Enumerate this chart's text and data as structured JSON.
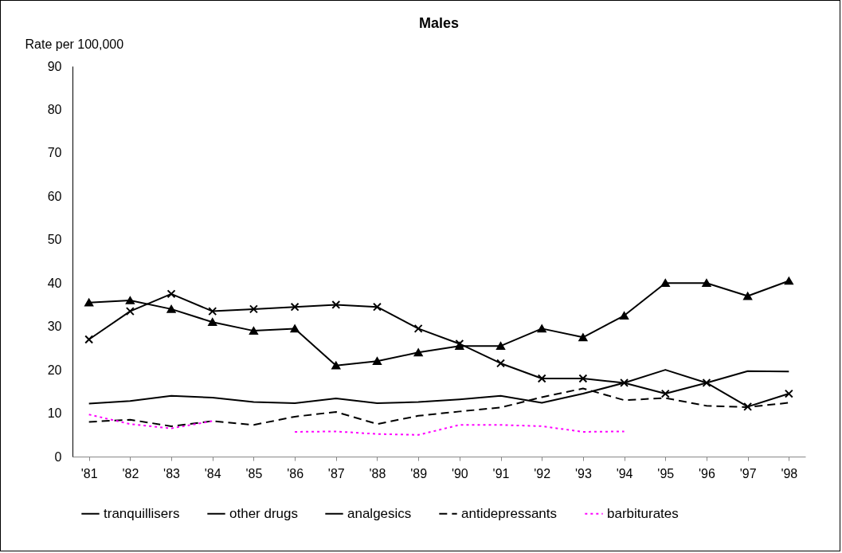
{
  "chart_data": {
    "type": "line",
    "title": "Males",
    "ylabel": "Rate per 100,000",
    "categories": [
      "'81",
      "'82",
      "'83",
      "'84",
      "'85",
      "'86",
      "'87",
      "'88",
      "'89",
      "'90",
      "'91",
      "'92",
      "'93",
      "'94",
      "'95",
      "'96",
      "'97",
      "'98"
    ],
    "ylim": [
      0,
      90
    ],
    "yticks": [
      0,
      10,
      20,
      30,
      40,
      50,
      60,
      70,
      80,
      90
    ],
    "grid": false,
    "legend": "bottom",
    "series": [
      {
        "name": "tranquillisers",
        "color": "#000000",
        "marker": "triangle",
        "line_style": "solid",
        "values": [
          35.5,
          36,
          34,
          31,
          29,
          29.5,
          21,
          22,
          24,
          25.5,
          25.5,
          29.5,
          27.5,
          32.5,
          40,
          40,
          37,
          40.5
        ]
      },
      {
        "name": "other drugs",
        "color": "#000000",
        "marker": "cross",
        "line_style": "solid",
        "values": [
          27,
          33.5,
          37.5,
          33.5,
          34,
          34.5,
          35,
          34.5,
          29.5,
          26,
          21.5,
          18,
          18,
          17,
          14.5,
          17,
          11.5,
          14.5
        ]
      },
      {
        "name": "analgesics",
        "color": "#000000",
        "marker": "none",
        "line_style": "solid",
        "values": [
          12.2,
          12.8,
          14,
          13.6,
          12.6,
          12.3,
          13.4,
          12.3,
          12.6,
          13.2,
          14,
          12.4,
          14.5,
          17,
          20,
          17,
          19.7,
          19.6
        ]
      },
      {
        "name": "antidepressants",
        "color": "#000000",
        "marker": "none",
        "line_style": "dashed",
        "values": [
          8,
          8.5,
          7,
          8.2,
          7.3,
          9.2,
          10.3,
          7.5,
          9.4,
          10.4,
          11.3,
          13.7,
          15.7,
          13,
          13.5,
          11.7,
          11.4,
          12.4
        ]
      },
      {
        "name": "barbiturates",
        "color": "#ff00ff",
        "marker": "none",
        "line_style": "dotted",
        "values": [
          9.7,
          7.5,
          6.5,
          8.2,
          null,
          5.7,
          5.8,
          5.2,
          5,
          7.3,
          7.3,
          7,
          5.7,
          5.8,
          null,
          null,
          null,
          null
        ]
      }
    ]
  }
}
